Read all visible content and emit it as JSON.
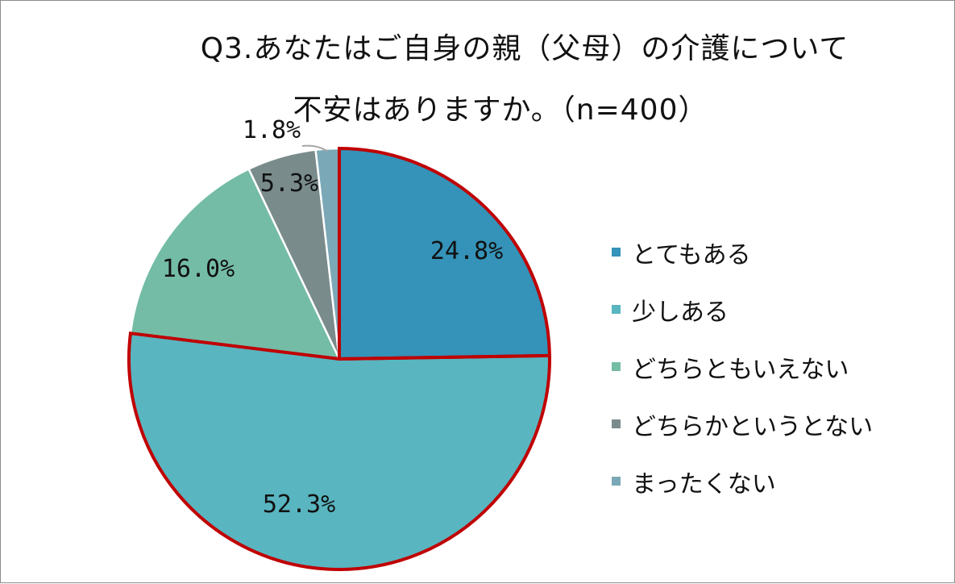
{
  "chart_data": {
    "type": "pie",
    "title_line1": "Q3.あなたはご自身の親（父母）の介護について",
    "title_line2": "不安はありますか。（n=400）",
    "categories": [
      "とてもある",
      "少しある",
      "どちらともいえない",
      "どちらかというとない",
      "まったくない"
    ],
    "values": [
      24.8,
      52.3,
      16.0,
      5.3,
      1.8
    ],
    "value_labels": [
      "24.8%",
      "52.3%",
      "16.0%",
      "5.3%",
      "1.8%"
    ],
    "colors": [
      "#3592b8",
      "#59b5c0",
      "#74bca6",
      "#7a8b8c",
      "#7aa8b6"
    ],
    "highlight_color": "#c00000",
    "highlighted_slices": [
      0,
      1
    ],
    "legend_position": "right",
    "start_angle": "top, clockwise"
  }
}
